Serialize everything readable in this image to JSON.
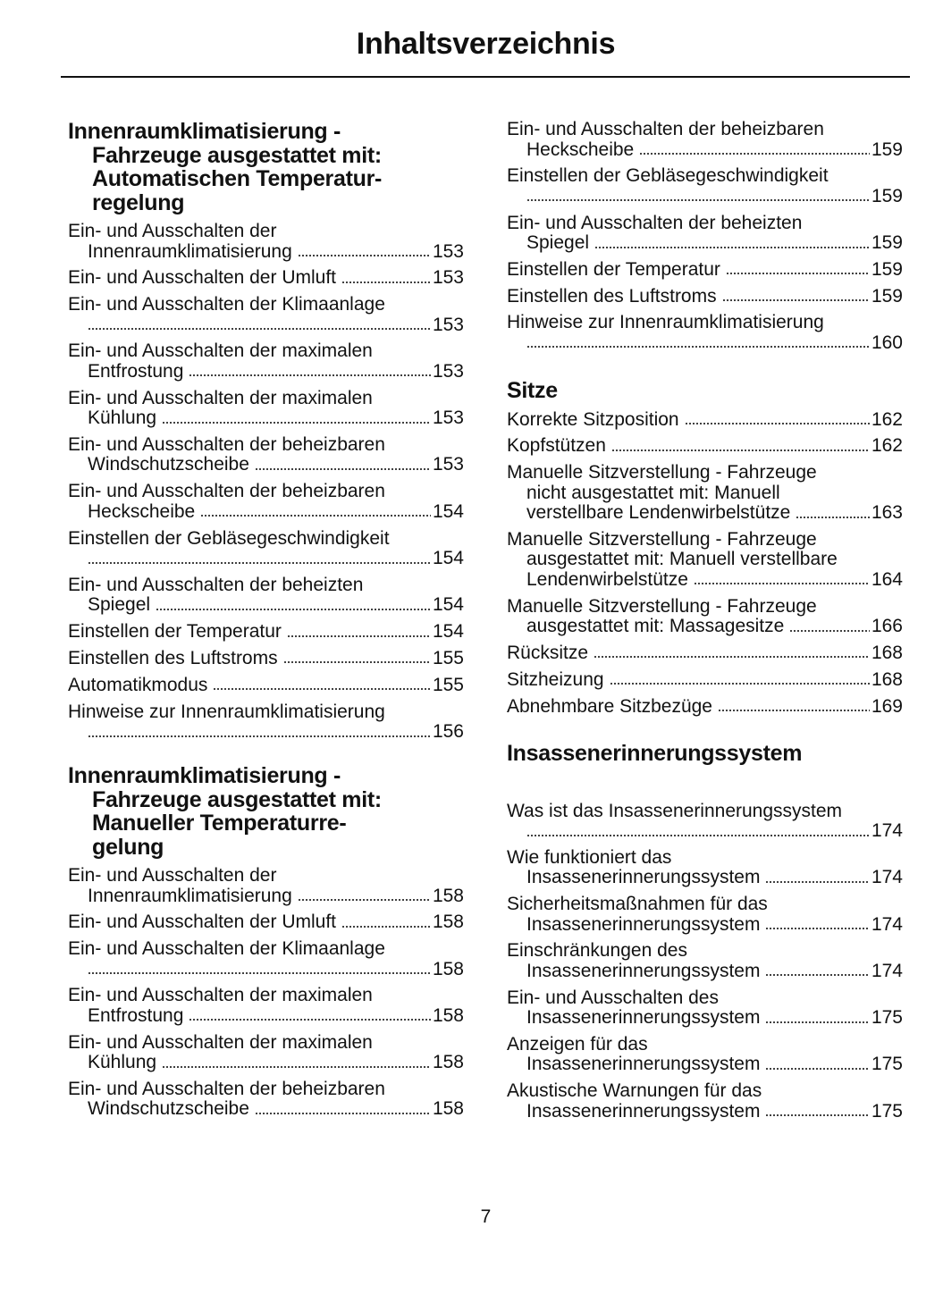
{
  "header": {
    "title": "Inhaltsverzeichnis"
  },
  "footer": {
    "page_number": "7"
  },
  "columns": [
    {
      "sections": [
        {
          "heading": [
            "Innenraumklimatisierung -",
            "Fahrzeuge ausgestattet mit:",
            "Automatischen Temperatur-",
            "regelung"
          ],
          "entries": [
            {
              "lines": [
                "Ein- und Ausschalten der",
                "Innenraumklimatisierung"
              ],
              "page": "153"
            },
            {
              "lines": [
                "Ein- und Ausschalten der Umluft"
              ],
              "page": "153"
            },
            {
              "lines": [
                "Ein- und Ausschalten der Klimaanlage",
                ""
              ],
              "page": "153"
            },
            {
              "lines": [
                "Ein- und Ausschalten der maximalen",
                "Entfrostung"
              ],
              "page": "153"
            },
            {
              "lines": [
                "Ein- und Ausschalten der maximalen",
                "Kühlung"
              ],
              "page": "153"
            },
            {
              "lines": [
                "Ein- und Ausschalten der beheizbaren",
                "Windschutzscheibe"
              ],
              "page": "153"
            },
            {
              "lines": [
                "Ein- und Ausschalten der beheizbaren",
                "Heckscheibe"
              ],
              "page": "154"
            },
            {
              "lines": [
                "Einstellen der Gebläsegeschwindigkeit",
                ""
              ],
              "page": "154"
            },
            {
              "lines": [
                "Ein- und Ausschalten der beheizten",
                "Spiegel"
              ],
              "page": "154"
            },
            {
              "lines": [
                "Einstellen der Temperatur"
              ],
              "page": "154"
            },
            {
              "lines": [
                "Einstellen des Luftstroms"
              ],
              "page": "155"
            },
            {
              "lines": [
                "Automatikmodus"
              ],
              "page": "155"
            },
            {
              "lines": [
                "Hinweise zur Innenraumklimatisierung",
                ""
              ],
              "page": "156"
            }
          ]
        },
        {
          "heading": [
            "Innenraumklimatisierung -",
            "Fahrzeuge ausgestattet mit:",
            "Manueller Temperaturre-",
            "gelung"
          ],
          "entries": [
            {
              "lines": [
                "Ein- und Ausschalten der",
                "Innenraumklimatisierung"
              ],
              "page": "158"
            },
            {
              "lines": [
                "Ein- und Ausschalten der Umluft"
              ],
              "page": "158"
            },
            {
              "lines": [
                "Ein- und Ausschalten der Klimaanlage",
                ""
              ],
              "page": "158"
            },
            {
              "lines": [
                "Ein- und Ausschalten der maximalen",
                "Entfrostung"
              ],
              "page": "158"
            },
            {
              "lines": [
                "Ein- und Ausschalten der maximalen",
                "Kühlung"
              ],
              "page": "158"
            },
            {
              "lines": [
                "Ein- und Ausschalten der beheizbaren",
                "Windschutzscheibe"
              ],
              "page": "158"
            }
          ]
        }
      ]
    },
    {
      "sections": [
        {
          "heading": [],
          "entries": [
            {
              "lines": [
                "Ein- und Ausschalten der beheizbaren",
                "Heckscheibe"
              ],
              "page": "159"
            },
            {
              "lines": [
                "Einstellen der Gebläsegeschwindigkeit",
                ""
              ],
              "page": "159"
            },
            {
              "lines": [
                "Ein- und Ausschalten der beheizten",
                "Spiegel"
              ],
              "page": "159"
            },
            {
              "lines": [
                "Einstellen der Temperatur"
              ],
              "page": "159"
            },
            {
              "lines": [
                "Einstellen des Luftstroms"
              ],
              "page": "159"
            },
            {
              "lines": [
                "Hinweise zur Innenraumklimatisierung",
                ""
              ],
              "page": "160"
            }
          ]
        },
        {
          "heading": [
            "Sitze"
          ],
          "entries": [
            {
              "lines": [
                "Korrekte Sitzposition"
              ],
              "page": "162"
            },
            {
              "lines": [
                "Kopfstützen"
              ],
              "page": "162"
            },
            {
              "lines": [
                "Manuelle Sitzverstellung - Fahrzeuge",
                "nicht ausgestattet mit: Manuell",
                "verstellbare Lendenwirbelstütze"
              ],
              "page": "163"
            },
            {
              "lines": [
                "Manuelle Sitzverstellung - Fahrzeuge",
                "ausgestattet mit: Manuell verstellbare",
                "Lendenwirbelstütze"
              ],
              "page": "164"
            },
            {
              "lines": [
                "Manuelle Sitzverstellung - Fahrzeuge",
                "ausgestattet mit: Massagesitze"
              ],
              "page": "166"
            },
            {
              "lines": [
                "Rücksitze"
              ],
              "page": "168"
            },
            {
              "lines": [
                "Sitzheizung"
              ],
              "page": "168"
            },
            {
              "lines": [
                "Abnehmbare Sitzbezüge"
              ],
              "page": "169"
            }
          ]
        },
        {
          "heading": [
            "Insassenerinnerungssystem"
          ],
          "entries": [
            {
              "lines": [
                "Was ist das Insassenerinnerungssystem",
                ""
              ],
              "page": "174"
            },
            {
              "lines": [
                "Wie funktioniert das",
                "Insassenerinnerungssystem"
              ],
              "page": "174"
            },
            {
              "lines": [
                "Sicherheitsmaßnahmen für das",
                "Insassenerinnerungssystem"
              ],
              "page": "174"
            },
            {
              "lines": [
                "Einschränkungen des",
                "Insassenerinnerungssystem"
              ],
              "page": "174"
            },
            {
              "lines": [
                "Ein- und Ausschalten des",
                "Insassenerinnerungssystem"
              ],
              "page": "175"
            },
            {
              "lines": [
                "Anzeigen für das",
                "Insassenerinnerungssystem"
              ],
              "page": "175"
            },
            {
              "lines": [
                "Akustische Warnungen für das",
                "Insassenerinnerungssystem"
              ],
              "page": "175"
            }
          ]
        }
      ]
    }
  ]
}
